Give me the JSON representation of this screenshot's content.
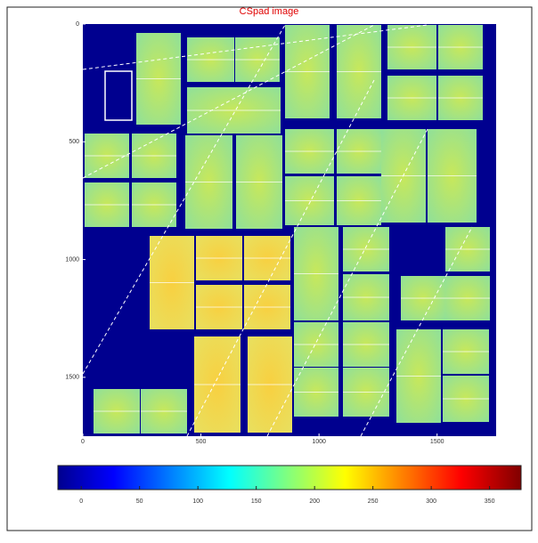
{
  "chart_data": {
    "type": "image",
    "title": "CSpad image",
    "xlim": [
      0,
      1750
    ],
    "ylim": [
      0,
      1750
    ],
    "y_inverted": true,
    "xticks": [
      0,
      500,
      1000,
      1500
    ],
    "yticks": [
      0,
      500,
      1000,
      1500
    ],
    "colorbar": {
      "lim": [
        -20,
        377
      ],
      "ticks": [
        0,
        50,
        100,
        150,
        200,
        250,
        300,
        350
      ]
    }
  }
}
